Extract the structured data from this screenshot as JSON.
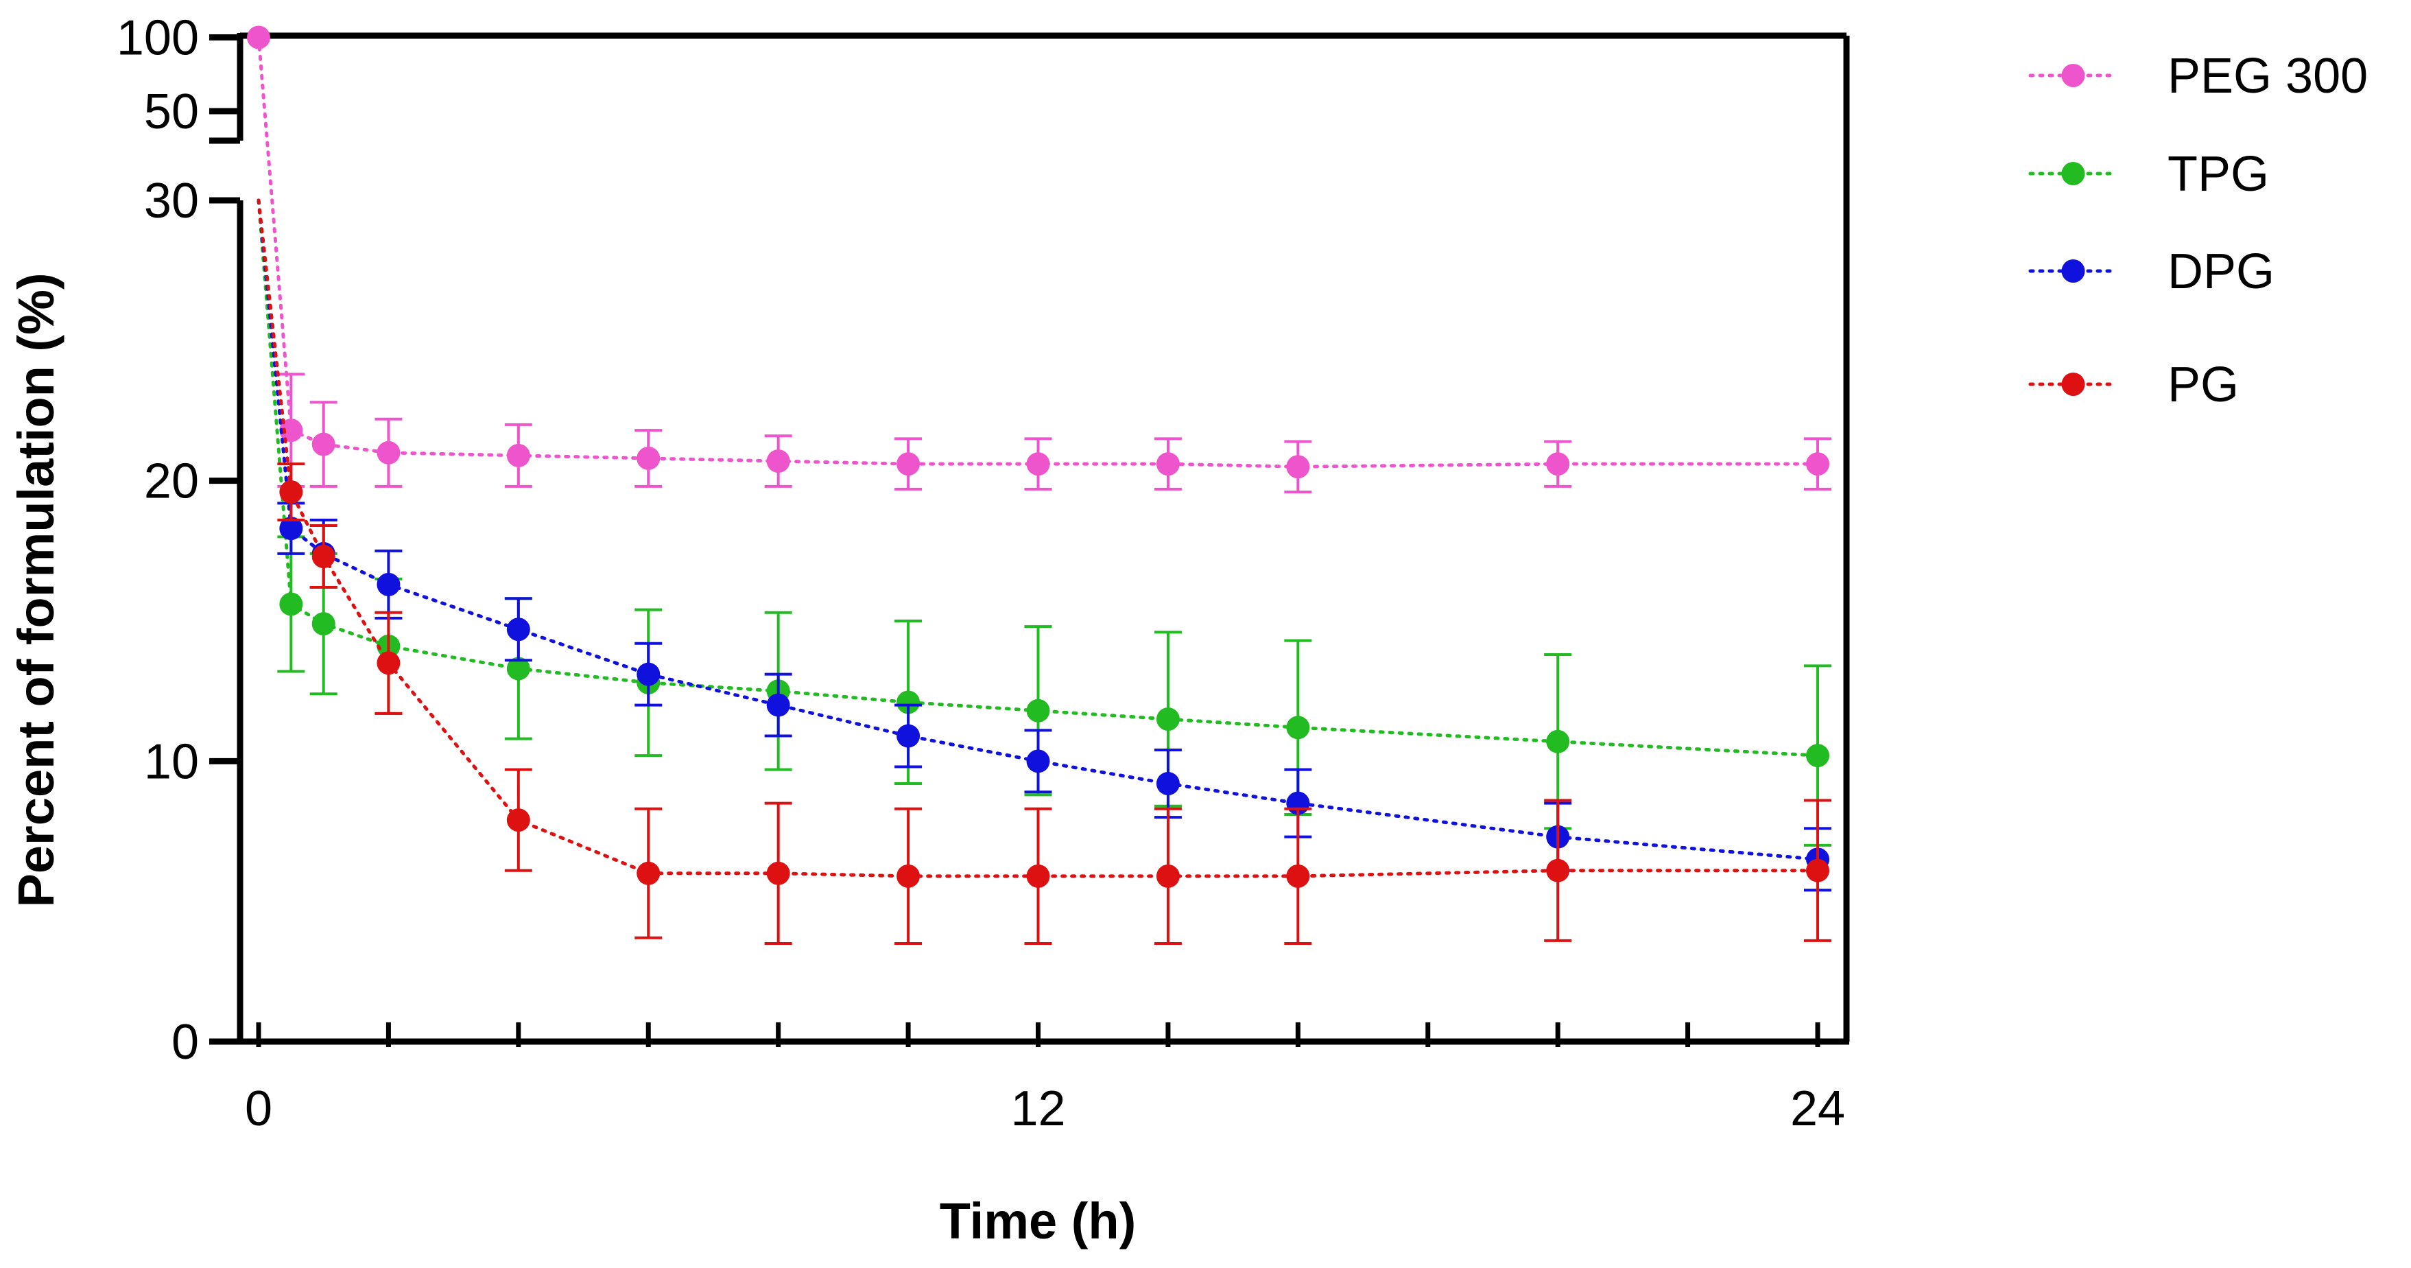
{
  "chart_data": {
    "type": "line",
    "title": "",
    "xlabel": "Time (h)",
    "ylabel": "Percent of formulation (%)",
    "x_ticks": [
      "0",
      "12",
      "24"
    ],
    "xlim": [
      0,
      24
    ],
    "y_axis_broken": true,
    "y_upper_segment": {
      "range": [
        30,
        110
      ],
      "ticks": [
        "100",
        "50"
      ]
    },
    "y_lower_segment": {
      "range": [
        0,
        30
      ],
      "ticks": [
        "30",
        "20",
        "10",
        "0"
      ]
    },
    "line_style": "dotted",
    "grid": false,
    "legend_position": "right",
    "series": [
      {
        "name": "PEG 300",
        "color": "#ee55cc",
        "x": [
          0,
          0.5,
          1,
          2,
          4,
          6,
          8,
          10,
          12,
          14,
          16,
          20,
          24
        ],
        "y": [
          100,
          21.8,
          21.3,
          21.0,
          20.9,
          20.8,
          20.7,
          20.6,
          20.6,
          20.6,
          20.5,
          20.6,
          20.6
        ],
        "err": [
          0,
          2.0,
          1.5,
          1.2,
          1.1,
          1.0,
          0.9,
          0.9,
          0.9,
          0.9,
          0.9,
          0.8,
          0.9
        ]
      },
      {
        "name": "TPG",
        "color": "#22bb22",
        "x": [
          0,
          0.5,
          1,
          2,
          4,
          6,
          8,
          10,
          12,
          14,
          16,
          20,
          24
        ],
        "y": [
          30,
          15.6,
          14.9,
          14.1,
          13.3,
          12.8,
          12.5,
          12.1,
          11.8,
          11.5,
          11.2,
          10.7,
          10.2
        ],
        "err": [
          0,
          2.4,
          2.5,
          2.4,
          2.5,
          2.6,
          2.8,
          2.9,
          3.0,
          3.1,
          3.1,
          3.1,
          3.2
        ]
      },
      {
        "name": "DPG",
        "color": "#1111dd",
        "x": [
          0,
          0.5,
          1,
          2,
          4,
          6,
          8,
          10,
          12,
          14,
          16,
          20,
          24
        ],
        "y": [
          30,
          18.3,
          17.4,
          16.3,
          14.7,
          13.1,
          12.0,
          10.9,
          10.0,
          9.2,
          8.5,
          7.3,
          6.5
        ],
        "err": [
          0,
          0.9,
          1.2,
          1.2,
          1.1,
          1.1,
          1.1,
          1.1,
          1.1,
          1.2,
          1.2,
          1.2,
          1.1
        ]
      },
      {
        "name": "PG",
        "color": "#dd1111",
        "x": [
          0,
          0.5,
          1,
          2,
          4,
          6,
          8,
          10,
          12,
          14,
          16,
          20,
          24
        ],
        "y": [
          30,
          19.6,
          17.3,
          13.5,
          7.9,
          6.0,
          6.0,
          5.9,
          5.9,
          5.9,
          5.9,
          6.1,
          6.1
        ],
        "err": [
          0,
          1.0,
          1.1,
          1.8,
          1.8,
          2.3,
          2.5,
          2.4,
          2.4,
          2.4,
          2.4,
          2.5,
          2.5
        ]
      }
    ]
  }
}
